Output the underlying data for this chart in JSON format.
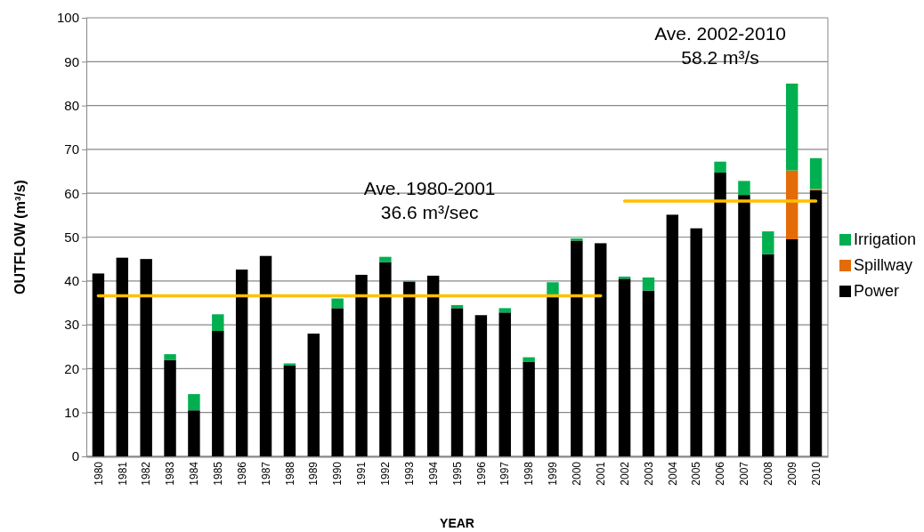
{
  "chart_data": {
    "type": "bar",
    "stacked": true,
    "xlabel": "YEAR",
    "ylabel": "OUTFLOW (m³/s)",
    "categories": [
      "1980",
      "1981",
      "1982",
      "1983",
      "1984",
      "1985",
      "1986",
      "1987",
      "1988",
      "1989",
      "1990",
      "1991",
      "1992",
      "1993",
      "1994",
      "1995",
      "1996",
      "1997",
      "1998",
      "1999",
      "2000",
      "2001",
      "2002",
      "2003",
      "2004",
      "2005",
      "2006",
      "2007",
      "2008",
      "2009",
      "2010"
    ],
    "series": [
      {
        "name": "Power",
        "color": "#000000",
        "values": [
          41.7,
          45.3,
          45,
          22,
          10.5,
          28.6,
          42.6,
          45.7,
          20.7,
          28,
          33.8,
          41.4,
          44.3,
          39.8,
          41.2,
          33.8,
          32.2,
          32.8,
          21.6,
          36.3,
          49.2,
          48.6,
          40.5,
          37.8,
          55.1,
          52,
          64.7,
          59.6,
          46.1,
          49.5,
          60.7
        ]
      },
      {
        "name": "Spillway",
        "color": "#e36c09",
        "values": [
          0,
          0,
          0,
          0,
          0,
          0,
          0,
          0,
          0,
          0,
          0,
          0,
          0,
          0,
          0,
          0,
          0,
          0,
          0,
          0,
          0,
          0,
          0,
          0,
          0,
          0,
          0,
          0,
          0,
          15.7,
          0.3
        ]
      },
      {
        "name": "Irrigation",
        "color": "#00b050",
        "values": [
          0,
          0,
          0,
          1.3,
          3.7,
          3.8,
          0,
          0,
          0.5,
          0,
          2.2,
          0,
          1.2,
          0.2,
          0,
          0.7,
          0,
          1,
          1,
          3.4,
          0.5,
          0,
          0.5,
          3,
          0,
          0,
          2.5,
          3.2,
          5.2,
          19.8,
          7
        ]
      },
      {
        "type": "line",
        "color": "#ffc000",
        "values": [
          36.6,
          36.6,
          36.6,
          36.6,
          36.6,
          36.6,
          36.6,
          36.6,
          36.6,
          36.6,
          36.6,
          36.6,
          36.6,
          36.6,
          36.6,
          36.6,
          36.6,
          36.6,
          36.6,
          36.6,
          36.6,
          36.6,
          null,
          null,
          null,
          null,
          null,
          null,
          null,
          null,
          null
        ]
      },
      {
        "type": "line",
        "color": "#ffc000",
        "values": [
          null,
          null,
          null,
          null,
          null,
          null,
          null,
          null,
          null,
          null,
          null,
          null,
          null,
          null,
          null,
          null,
          null,
          null,
          null,
          null,
          null,
          null,
          58.2,
          58.2,
          58.2,
          58.2,
          58.2,
          58.2,
          58.2,
          58.2,
          58.2
        ]
      }
    ],
    "annotations": [
      "Ave. 1980-2001\n36.6 m³/sec",
      "Ave. 2002-2010\n58.2 m³/s"
    ],
    "ylim": [
      0,
      100
    ],
    "yticks": [
      0,
      10,
      20,
      30,
      40,
      50,
      60,
      70,
      80,
      90,
      100
    ],
    "grid": "y",
    "legend": "right"
  }
}
